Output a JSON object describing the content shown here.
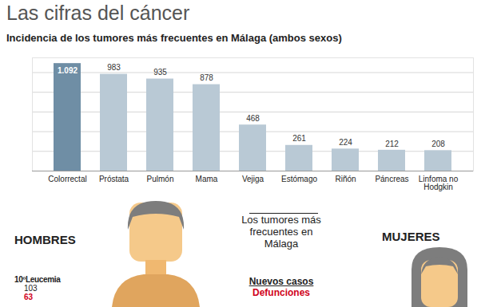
{
  "header": {
    "title": "Las cifras del cáncer"
  },
  "chart_data": {
    "type": "bar",
    "title": "Incidencia de los tumores más frecuentes en Málaga (ambos sexos)",
    "categories": [
      "Colorrectal",
      "Próstata",
      "Pulmón",
      "Mama",
      "Vejiga",
      "Estómago",
      "Riñón",
      "Páncreas",
      "Linfoma no Hodgkin"
    ],
    "values": [
      1092,
      983,
      935,
      878,
      468,
      261,
      224,
      212,
      208
    ],
    "value_labels": [
      "1.092",
      "983",
      "935",
      "878",
      "468",
      "261",
      "224",
      "212",
      "208"
    ],
    "colors": [
      "#6f8ea5",
      "#b9c9d5",
      "#b9c9d5",
      "#b9c9d5",
      "#b9c9d5",
      "#b9c9d5",
      "#b9c9d5",
      "#b9c9d5",
      "#b9c9d5"
    ],
    "ylim": [
      0,
      1150
    ],
    "yticks": [
      0,
      200,
      400,
      600,
      800,
      1000
    ],
    "grid": true,
    "data_labels": true,
    "tick_labels": "x"
  },
  "lower_panel": {
    "men_label": "HOMBRES",
    "women_label": "MUJERES",
    "center_title": "Los tumores más frecuentes en Málaga",
    "key": [
      {
        "label": "Nuevos casos",
        "color": "#222222"
      },
      {
        "label": "Defunciones",
        "color": "#d0021b"
      }
    ],
    "items": [
      {
        "rank": "10º",
        "name": "Leucemia",
        "new_cases": 103,
        "deaths": 63
      }
    ]
  }
}
